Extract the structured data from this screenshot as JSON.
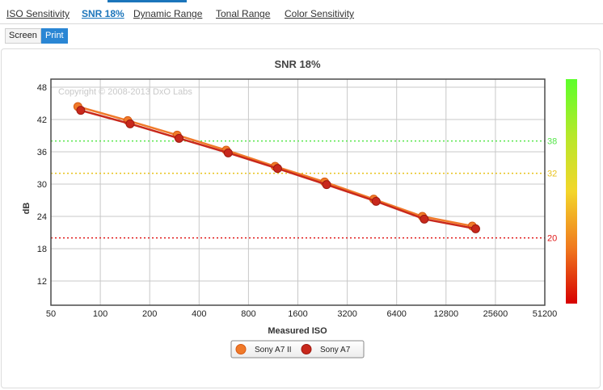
{
  "tabs": [
    {
      "label": "ISO Sensitivity",
      "active": false
    },
    {
      "label": "SNR 18%",
      "active": true
    },
    {
      "label": "Dynamic Range",
      "active": false
    },
    {
      "label": "Tonal Range",
      "active": false
    },
    {
      "label": "Color Sensitivity",
      "active": false
    }
  ],
  "view_toggle": {
    "screen_label": "Screen",
    "print_label": "Print",
    "selected": "Print"
  },
  "watermark": "Copyright © 2008-2013 DxO Labs",
  "chart_data": {
    "type": "line",
    "title": "SNR 18%",
    "xlabel": "Measured ISO",
    "ylabel": "dB",
    "x_scale": "log2",
    "x_ticks": [
      "50",
      "100",
      "200",
      "400",
      "800",
      "1600",
      "3200",
      "6400",
      "12800",
      "25600",
      "51200"
    ],
    "xlim": [
      50,
      51200
    ],
    "y_ticks": [
      12,
      18,
      24,
      30,
      36,
      42,
      48
    ],
    "ylim": [
      7.5,
      49.5
    ],
    "grid": true,
    "reference_lines": [
      {
        "value": 38,
        "label": "38",
        "color": "#55e64a"
      },
      {
        "value": 32,
        "label": "32",
        "color": "#e8c21a"
      },
      {
        "value": 20,
        "label": "20",
        "color": "#e01818"
      }
    ],
    "color_scale": {
      "stops": [
        "#5cff2a",
        "#b6e82a",
        "#f3d62a",
        "#f07a1e",
        "#d70000"
      ]
    },
    "series": [
      {
        "name": "Sony A7 II",
        "color": "#f07a2a",
        "x": [
          73,
          147,
          294,
          585,
          1163,
          2329,
          4640,
          9183,
          18500
        ],
        "y": [
          44.4,
          41.8,
          39.1,
          36.3,
          33.3,
          30.4,
          27.2,
          24.0,
          22.2
        ]
      },
      {
        "name": "Sony A7",
        "color": "#c8281c",
        "x": [
          76,
          152,
          302,
          602,
          1204,
          2395,
          4797,
          9433,
          19400
        ],
        "y": [
          43.7,
          41.2,
          38.5,
          35.8,
          32.9,
          29.9,
          26.8,
          23.5,
          21.7
        ]
      }
    ],
    "legend_position": "bottom-center"
  }
}
